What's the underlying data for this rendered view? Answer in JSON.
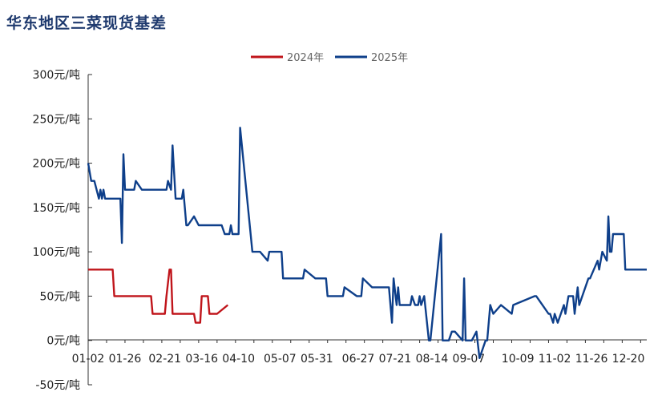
{
  "title": "华东地区三菜现货基差",
  "chart_data": {
    "type": "line",
    "title": "华东地区三菜现货基差",
    "ylim": [
      -50,
      300
    ],
    "y_ticks": [
      "-50元/吨",
      "0元/吨",
      "50元/吨",
      "100元/吨",
      "150元/吨",
      "200元/吨",
      "250元/吨",
      "300元/吨"
    ],
    "y_tick_values": [
      -50,
      0,
      50,
      100,
      150,
      200,
      250,
      300
    ],
    "x_ticks": [
      "01-02",
      "01-26",
      "02-21",
      "03-16",
      "04-10",
      "05-07",
      "05-31",
      "06-27",
      "07-21",
      "08-14",
      "09-07",
      "10-09",
      "11-02",
      "11-26",
      "12-20"
    ],
    "x_tick_days": [
      1,
      25,
      51,
      75,
      99,
      126,
      150,
      177,
      201,
      225,
      249,
      281,
      305,
      329,
      353
    ],
    "legend_position": "top",
    "grid": false,
    "series": [
      {
        "name": "2024年",
        "color": "#c0151b",
        "x_days": [
          1,
          17,
          18,
          42,
          43,
          51,
          52,
          54,
          55,
          56,
          57,
          70,
          71,
          74,
          75,
          79,
          80,
          84,
          85,
          92
        ],
        "values": [
          80,
          80,
          50,
          50,
          30,
          30,
          50,
          80,
          80,
          30,
          30,
          30,
          20,
          20,
          50,
          50,
          30,
          30,
          30,
          40
        ]
      },
      {
        "name": "2025年",
        "color": "#0e3f8a",
        "x_days": [
          1,
          3,
          5,
          8,
          9,
          10,
          11,
          12,
          22,
          23,
          24,
          25,
          31,
          32,
          36,
          52,
          53,
          55,
          56,
          58,
          62,
          63,
          65,
          66,
          70,
          73,
          74,
          88,
          90,
          93,
          94,
          95,
          96,
          99,
          100,
          108,
          109,
          112,
          113,
          118,
          119,
          121,
          122,
          127,
          128,
          141,
          142,
          149,
          150,
          156,
          157,
          160,
          161,
          167,
          168,
          176,
          177,
          179,
          180,
          186,
          187,
          196,
          197,
          199,
          200,
          202,
          203,
          204,
          211,
          212,
          214,
          216,
          217,
          218,
          220,
          223,
          224,
          231,
          232,
          236,
          238,
          240,
          245,
          246,
          247,
          248,
          251,
          254,
          256,
          260,
          261,
          263,
          265,
          270,
          277,
          278,
          292,
          293,
          301,
          302,
          304,
          305,
          307,
          311,
          312,
          314,
          317,
          318,
          320,
          321,
          327,
          328,
          333,
          334,
          336,
          339,
          340,
          341,
          342,
          343,
          344,
          350,
          351,
          365
        ],
        "values": [
          200,
          180,
          180,
          160,
          170,
          160,
          170,
          160,
          160,
          110,
          210,
          170,
          170,
          180,
          170,
          170,
          180,
          170,
          220,
          160,
          160,
          170,
          130,
          130,
          140,
          130,
          130,
          130,
          120,
          120,
          130,
          120,
          120,
          120,
          240,
          100,
          100,
          100,
          100,
          90,
          100,
          100,
          100,
          100,
          70,
          70,
          80,
          70,
          70,
          70,
          50,
          50,
          50,
          50,
          60,
          50,
          50,
          50,
          70,
          60,
          60,
          60,
          60,
          20,
          70,
          40,
          60,
          40,
          40,
          50,
          40,
          40,
          50,
          40,
          50,
          0,
          0,
          120,
          0,
          0,
          10,
          10,
          0,
          70,
          0,
          0,
          0,
          10,
          -20,
          0,
          0,
          40,
          30,
          40,
          30,
          40,
          50,
          50,
          30,
          30,
          20,
          30,
          20,
          40,
          30,
          50,
          50,
          30,
          60,
          40,
          70,
          70,
          90,
          80,
          100,
          90,
          140,
          100,
          100,
          120,
          120,
          120,
          80,
          80
        ]
      }
    ]
  }
}
